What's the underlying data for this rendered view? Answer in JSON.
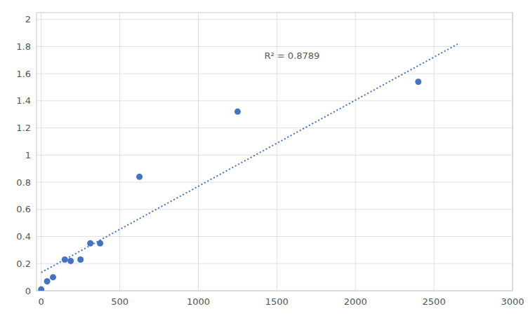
{
  "chart_data": {
    "type": "scatter",
    "series": [
      {
        "type": "scatter",
        "color": "#4472C4",
        "marker": "circle",
        "x": [
          0,
          37.5,
          75,
          150,
          187.5,
          250,
          312.5,
          375,
          625,
          1250,
          2400
        ],
        "values": [
          0.01,
          0.07,
          0.1,
          0.23,
          0.22,
          0.23,
          0.35,
          0.35,
          0.84,
          1.32,
          1.54
        ]
      },
      {
        "type": "line",
        "color": "#4472C4",
        "line_style": "dotted",
        "x": [
          0,
          2650
        ],
        "values": [
          0.135,
          1.81775
        ]
      }
    ],
    "annotations": [
      {
        "text": "R² = 0.8789",
        "x": 1420,
        "y": 1.73
      }
    ],
    "xlim": [
      -30,
      3000
    ],
    "ylim": [
      0,
      2.05
    ],
    "xticks": [
      0,
      500,
      1000,
      1500,
      2000,
      2500,
      3000
    ],
    "yticks": [
      0,
      0.2,
      0.4,
      0.6,
      0.8,
      1.0,
      1.2,
      1.4,
      1.6,
      1.8,
      2.0
    ],
    "grid": true
  }
}
